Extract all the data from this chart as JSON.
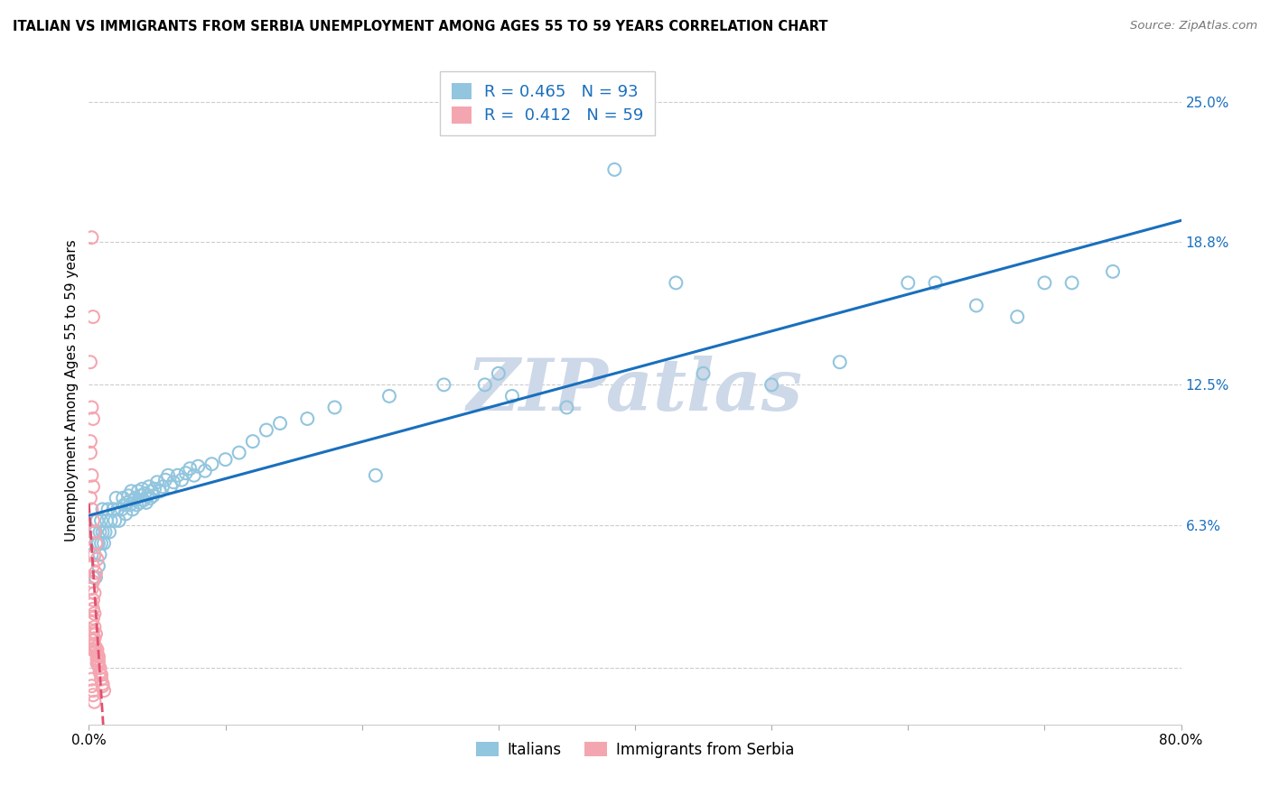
{
  "title": "ITALIAN VS IMMIGRANTS FROM SERBIA UNEMPLOYMENT AMONG AGES 55 TO 59 YEARS CORRELATION CHART",
  "source": "Source: ZipAtlas.com",
  "ylabel": "Unemployment Among Ages 55 to 59 years",
  "xlim": [
    0.0,
    0.8
  ],
  "ylim": [
    -0.025,
    0.27
  ],
  "ytick_positions": [
    0.0,
    0.063,
    0.125,
    0.188,
    0.25
  ],
  "ytick_labels": [
    "",
    "6.3%",
    "12.5%",
    "18.8%",
    "25.0%"
  ],
  "legend_r_italian": "0.465",
  "legend_n_italian": "93",
  "legend_r_serbia": "0.412",
  "legend_n_serbia": "59",
  "legend_label_italian": "Italians",
  "legend_label_serbia": "Immigrants from Serbia",
  "color_italian": "#92c5de",
  "color_serbia": "#f4a6b0",
  "color_line_italian": "#1a6fbd",
  "color_line_serbia": "#e05070",
  "color_tick_right": "#1a6fbd",
  "watermark_color": "#cdd8e8",
  "background_color": "#ffffff",
  "grid_color": "#cccccc",
  "italian_x": [
    0.002,
    0.003,
    0.003,
    0.004,
    0.005,
    0.005,
    0.006,
    0.006,
    0.007,
    0.007,
    0.008,
    0.008,
    0.009,
    0.009,
    0.01,
    0.01,
    0.011,
    0.012,
    0.013,
    0.014,
    0.015,
    0.016,
    0.018,
    0.019,
    0.02,
    0.021,
    0.022,
    0.024,
    0.025,
    0.026,
    0.027,
    0.028,
    0.029,
    0.03,
    0.031,
    0.032,
    0.033,
    0.034,
    0.035,
    0.036,
    0.037,
    0.038,
    0.039,
    0.04,
    0.041,
    0.042,
    0.043,
    0.044,
    0.045,
    0.046,
    0.047,
    0.048,
    0.05,
    0.052,
    0.054,
    0.056,
    0.058,
    0.06,
    0.062,
    0.065,
    0.068,
    0.071,
    0.074,
    0.077,
    0.08,
    0.085,
    0.09,
    0.1,
    0.11,
    0.12,
    0.13,
    0.14,
    0.16,
    0.18,
    0.22,
    0.26,
    0.3,
    0.35,
    0.385,
    0.43,
    0.45,
    0.5,
    0.55,
    0.6,
    0.62,
    0.65,
    0.68,
    0.7,
    0.72,
    0.75,
    0.29,
    0.31,
    0.21
  ],
  "italian_y": [
    0.05,
    0.04,
    0.06,
    0.05,
    0.04,
    0.06,
    0.055,
    0.065,
    0.045,
    0.055,
    0.06,
    0.05,
    0.065,
    0.055,
    0.06,
    0.07,
    0.055,
    0.06,
    0.065,
    0.07,
    0.06,
    0.065,
    0.07,
    0.065,
    0.075,
    0.07,
    0.065,
    0.07,
    0.075,
    0.072,
    0.068,
    0.073,
    0.076,
    0.072,
    0.078,
    0.07,
    0.074,
    0.075,
    0.072,
    0.078,
    0.073,
    0.076,
    0.079,
    0.074,
    0.077,
    0.073,
    0.076,
    0.08,
    0.075,
    0.078,
    0.076,
    0.079,
    0.082,
    0.078,
    0.08,
    0.083,
    0.085,
    0.08,
    0.082,
    0.085,
    0.083,
    0.086,
    0.088,
    0.085,
    0.089,
    0.087,
    0.09,
    0.092,
    0.095,
    0.1,
    0.105,
    0.108,
    0.11,
    0.115,
    0.12,
    0.125,
    0.13,
    0.115,
    0.22,
    0.17,
    0.13,
    0.125,
    0.135,
    0.17,
    0.17,
    0.16,
    0.155,
    0.17,
    0.17,
    0.175,
    0.125,
    0.12,
    0.085
  ],
  "serbia_x": [
    0.002,
    0.003,
    0.001,
    0.002,
    0.003,
    0.001,
    0.001,
    0.002,
    0.003,
    0.001,
    0.002,
    0.003,
    0.004,
    0.005,
    0.004,
    0.006,
    0.003,
    0.005,
    0.004,
    0.003,
    0.002,
    0.004,
    0.003,
    0.002,
    0.003,
    0.004,
    0.003,
    0.002,
    0.004,
    0.003,
    0.005,
    0.004,
    0.003,
    0.004,
    0.005,
    0.006,
    0.005,
    0.006,
    0.007,
    0.006,
    0.007,
    0.006,
    0.007,
    0.008,
    0.008,
    0.009,
    0.009,
    0.01,
    0.01,
    0.011,
    0.002,
    0.003,
    0.002,
    0.003,
    0.002,
    0.003,
    0.004,
    0.003,
    0.002
  ],
  "serbia_y": [
    0.19,
    0.155,
    0.135,
    0.115,
    0.11,
    0.1,
    0.095,
    0.085,
    0.08,
    0.075,
    0.07,
    0.065,
    0.06,
    0.055,
    0.05,
    0.048,
    0.045,
    0.042,
    0.04,
    0.038,
    0.035,
    0.033,
    0.03,
    0.028,
    0.026,
    0.024,
    0.022,
    0.02,
    0.018,
    0.016,
    0.015,
    0.013,
    0.012,
    0.01,
    0.009,
    0.008,
    0.007,
    0.006,
    0.005,
    0.004,
    0.003,
    0.002,
    0.001,
    0.0,
    -0.002,
    -0.003,
    -0.005,
    -0.007,
    -0.008,
    -0.01,
    0.015,
    0.012,
    0.01,
    0.008,
    -0.005,
    -0.01,
    -0.015,
    -0.012,
    -0.008
  ]
}
